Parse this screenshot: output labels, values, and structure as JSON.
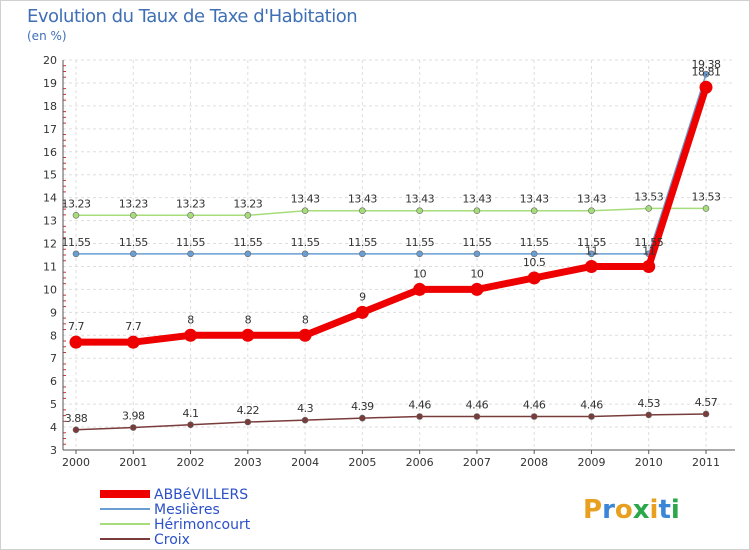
{
  "chart_data": {
    "type": "line",
    "title": "Evolution du Taux de Taxe d'Habitation",
    "subtitle": "(en %)",
    "xlabel": "",
    "ylabel": "",
    "ylim": [
      3,
      20
    ],
    "categories": [
      "2000",
      "2001",
      "2002",
      "2003",
      "2004",
      "2005",
      "2006",
      "2007",
      "2008",
      "2009",
      "2010",
      "2011"
    ],
    "series": [
      {
        "name": "ABBéVILLERS",
        "color": "#ee0000",
        "values": [
          7.7,
          7.7,
          8,
          8,
          8,
          9,
          10,
          10,
          10.5,
          11,
          11,
          18.81
        ],
        "labels": [
          "7.7",
          "7.7",
          "8",
          "8",
          "8",
          "9",
          "10",
          "10",
          "10.5",
          "11",
          "11",
          "18.81"
        ]
      },
      {
        "name": "Meslières",
        "color": "#6a9ed3",
        "values": [
          11.55,
          11.55,
          11.55,
          11.55,
          11.55,
          11.55,
          11.55,
          11.55,
          11.55,
          11.55,
          11.55,
          19.38
        ],
        "labels": [
          "11.55",
          "11.55",
          "11.55",
          "11.55",
          "11.55",
          "11.55",
          "11.55",
          "11.55",
          "11.55",
          "11.55",
          "11.55",
          "19.38"
        ]
      },
      {
        "name": "Hérimoncourt",
        "color": "#a6dc7a",
        "values": [
          13.23,
          13.23,
          13.23,
          13.23,
          13.43,
          13.43,
          13.43,
          13.43,
          13.43,
          13.43,
          13.53,
          13.53
        ],
        "labels": [
          "13.23",
          "13.23",
          "13.23",
          "13.23",
          "13.43",
          "13.43",
          "13.43",
          "13.43",
          "13.43",
          "13.43",
          "13.53",
          "13.53"
        ]
      },
      {
        "name": "Croix",
        "color": "#7a3b3b",
        "values": [
          3.88,
          3.98,
          4.1,
          4.22,
          4.3,
          4.39,
          4.46,
          4.46,
          4.46,
          4.46,
          4.53,
          4.57
        ],
        "labels": [
          "3.88",
          "3.98",
          "4.1",
          "4.22",
          "4.3",
          "4.39",
          "4.46",
          "4.46",
          "4.46",
          "4.46",
          "4.53",
          "4.57"
        ]
      }
    ],
    "yticks": [
      "3",
      "4",
      "5",
      "6",
      "7",
      "8",
      "9",
      "10",
      "11",
      "12",
      "13",
      "14",
      "15",
      "16",
      "17",
      "18",
      "19",
      "20"
    ],
    "legend_position": "bottom-left"
  },
  "logo": {
    "text": "Proxiti"
  }
}
